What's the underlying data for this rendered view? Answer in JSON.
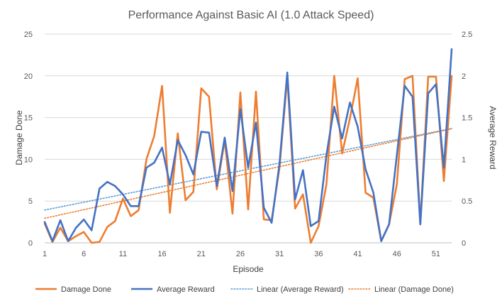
{
  "chart_data": {
    "type": "line",
    "title": "Performance Against Basic AI (1.0 Attack Speed)",
    "xlabel": "Episode",
    "ylabel_left": "Damage Done",
    "ylabel_right": "Average Reward",
    "ylim_left": [
      0,
      25
    ],
    "ylim_right": [
      0,
      2.5
    ],
    "y_ticks_left": [
      "0",
      "5",
      "10",
      "15",
      "20",
      "25"
    ],
    "y_ticks_right": [
      "0",
      "0.5",
      "1",
      "1.5",
      "2",
      "2.5"
    ],
    "x_ticks": [
      "1",
      "6",
      "11",
      "16",
      "21",
      "26",
      "31",
      "36",
      "41",
      "46",
      "51"
    ],
    "x": [
      1,
      2,
      3,
      4,
      5,
      6,
      7,
      8,
      9,
      10,
      11,
      12,
      13,
      14,
      15,
      16,
      17,
      18,
      19,
      20,
      21,
      22,
      23,
      24,
      25,
      26,
      27,
      28,
      29,
      30,
      31,
      32,
      33,
      34,
      35,
      36,
      37,
      38,
      39,
      40,
      41,
      42,
      43,
      44,
      45,
      46,
      47,
      48,
      49,
      50,
      51,
      52,
      53
    ],
    "series": [
      {
        "name": "Damage Done",
        "axis": "left",
        "color": "#ed7d31",
        "values": [
          2.3,
          0.1,
          1.8,
          0.2,
          0.8,
          1.3,
          0.0,
          0.1,
          1.9,
          2.6,
          5.3,
          3.2,
          3.9,
          10.0,
          12.8,
          18.8,
          3.6,
          13.1,
          5.1,
          6.1,
          18.5,
          17.5,
          6.4,
          12.3,
          3.5,
          18.0,
          4.0,
          18.1,
          2.8,
          2.7,
          9.0,
          19.9,
          4.1,
          5.8,
          0.0,
          2.0,
          7.0,
          20.0,
          10.7,
          14.9,
          19.7,
          6.0,
          5.4,
          0.2,
          2.2,
          7.0,
          19.6,
          20.0,
          2.3,
          19.9,
          19.9,
          7.4,
          20.0
        ]
      },
      {
        "name": "Average Reward",
        "axis": "right",
        "color": "#4472c4",
        "values": [
          0.25,
          0.02,
          0.27,
          0.02,
          0.18,
          0.28,
          0.15,
          0.65,
          0.73,
          0.68,
          0.58,
          0.44,
          0.44,
          0.9,
          0.96,
          1.14,
          0.7,
          1.23,
          1.05,
          0.82,
          1.33,
          1.32,
          0.68,
          1.26,
          0.62,
          1.6,
          0.9,
          1.44,
          0.42,
          0.24,
          0.95,
          2.04,
          0.52,
          0.87,
          0.2,
          0.26,
          1.05,
          1.63,
          1.25,
          1.68,
          1.39,
          0.88,
          0.6,
          0.02,
          0.22,
          1.05,
          1.88,
          1.75,
          0.22,
          1.79,
          1.9,
          0.9,
          2.32
        ]
      },
      {
        "name": "Linear (Average Reward)",
        "axis": "right",
        "color": "#5b9bd5",
        "style": "dotted",
        "trendline_of": "Average Reward"
      },
      {
        "name": "Linear (Damage Done)",
        "axis": "left",
        "color": "#ed7d31",
        "style": "dotted",
        "trendline_of": "Damage Done"
      }
    ],
    "legend_position": "bottom",
    "grid": true
  }
}
